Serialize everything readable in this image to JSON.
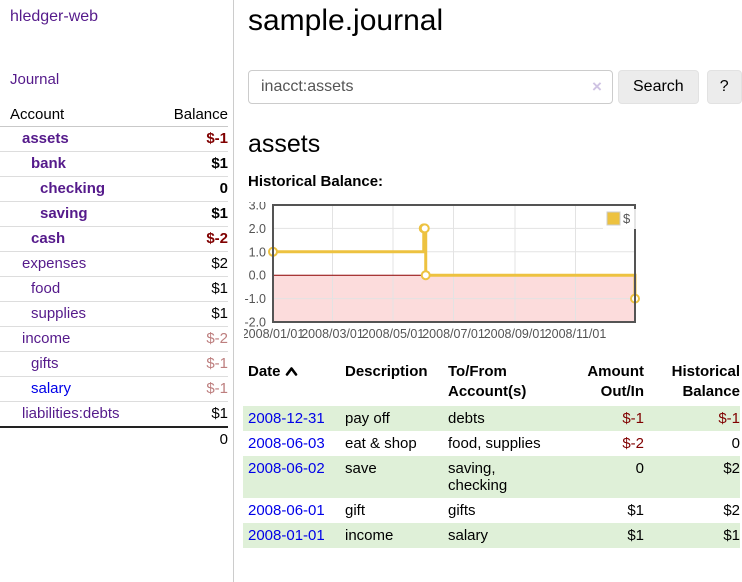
{
  "app": {
    "title": "hledger-web"
  },
  "sidebar": {
    "journal_link": "Journal",
    "account_header": "Account",
    "balance_header": "Balance",
    "accounts": [
      {
        "name": "assets",
        "indent": 1,
        "bold": true,
        "balance": "$-1",
        "balance_style": "neg-strong"
      },
      {
        "name": "bank",
        "indent": 2,
        "bold": true,
        "balance": "$1",
        "balance_style": "pos-strong"
      },
      {
        "name": "checking",
        "indent": 3,
        "bold": true,
        "balance": "0",
        "balance_style": "pos-strong"
      },
      {
        "name": "saving",
        "indent": 3,
        "bold": true,
        "balance": "$1",
        "balance_style": "pos-strong"
      },
      {
        "name": "cash",
        "indent": 2,
        "bold": true,
        "balance": "$-2",
        "balance_style": "neg-strong"
      },
      {
        "name": "expenses",
        "indent": 1,
        "bold": false,
        "balance": "$2",
        "balance_style": "pos"
      },
      {
        "name": "food",
        "indent": 2,
        "bold": false,
        "balance": "$1",
        "balance_style": "pos"
      },
      {
        "name": "supplies",
        "indent": 2,
        "bold": false,
        "balance": "$1",
        "balance_style": "pos"
      },
      {
        "name": "income",
        "indent": 1,
        "bold": false,
        "balance": "$-2",
        "balance_style": "neg"
      },
      {
        "name": "gifts",
        "indent": 2,
        "bold": false,
        "balance": "$-1",
        "balance_style": "neg"
      },
      {
        "name": "salary",
        "indent": 2,
        "bold": false,
        "balance": "$-1",
        "balance_style": "neg",
        "link_style": "unvisited"
      },
      {
        "name": "liabilities:debts",
        "indent": 1,
        "bold": false,
        "balance": "$1",
        "balance_style": "pos"
      }
    ],
    "total": "0"
  },
  "header": {
    "title": "sample.journal"
  },
  "search": {
    "value": "inacct:assets",
    "clear_icon": "×",
    "button_label": "Search",
    "help_label": "?"
  },
  "account_page": {
    "title": "assets",
    "chart_label": "Historical Balance:"
  },
  "chart_data": {
    "type": "line",
    "step": true,
    "title": "Historical Balance",
    "series": [
      {
        "name": "$",
        "color": "#edc240",
        "points": [
          [
            "2008-01-01",
            1
          ],
          [
            "2008-06-01",
            2
          ],
          [
            "2008-06-02",
            2
          ],
          [
            "2008-06-03",
            0
          ],
          [
            "2008-12-31",
            -1
          ]
        ]
      }
    ],
    "xlim": [
      "2008-01-01",
      "2008-12-31"
    ],
    "ylim": [
      -2.0,
      3.0
    ],
    "x_tick_labels": [
      "2008/01/01",
      "2008/03/01",
      "2008/05/01",
      "2008/07/01",
      "2008/09/01",
      "2008/11/01"
    ],
    "y_tick_labels": [
      "3.0",
      "2.0",
      "1.0",
      "0.0",
      "-1.0",
      "-2.0"
    ],
    "y_ticks": [
      3,
      2,
      1,
      0,
      -1,
      -2
    ],
    "grid": true,
    "legend_position": "top-right",
    "negative_region_color": "#fcdcdc",
    "zero_line_color": "#8b0000",
    "grid_color": "#e3e3e3",
    "border_color": "#545454",
    "tick_text_color": "#545454"
  },
  "register": {
    "headers": {
      "date": "Date",
      "description": "Description",
      "account": "To/From Account(s)",
      "amount": "Amount Out/In",
      "balance": "Historical Balance"
    },
    "sort": {
      "column": "date",
      "direction": "ascending",
      "icon": "chevron-up-icon"
    },
    "rows": [
      {
        "date": "2008-12-31",
        "description": "pay off",
        "account": "debts",
        "amount": "$-1",
        "amount_negative": true,
        "balance": "$-1",
        "balance_negative": true
      },
      {
        "date": "2008-06-03",
        "description": "eat & shop",
        "account": "food, supplies",
        "amount": "$-2",
        "amount_negative": true,
        "balance": "0",
        "balance_negative": false
      },
      {
        "date": "2008-06-02",
        "description": "save",
        "account": "saving, checking",
        "amount": "0",
        "amount_negative": false,
        "balance": "$2",
        "balance_negative": false
      },
      {
        "date": "2008-06-01",
        "description": "gift",
        "account": "gifts",
        "amount": "$1",
        "amount_negative": false,
        "balance": "$2",
        "balance_negative": false
      },
      {
        "date": "2008-01-01",
        "description": "income",
        "account": "salary",
        "amount": "$1",
        "amount_negative": false,
        "balance": "$1",
        "balance_negative": false
      }
    ]
  },
  "colors": {
    "link_visited_purple": "#551a8b",
    "link_blue": "#0000e8",
    "negative_strong": "#800000",
    "negative_dim": "#bd7e7e",
    "row_highlight_green": "#dff0d8",
    "series_gold": "#edc240"
  }
}
